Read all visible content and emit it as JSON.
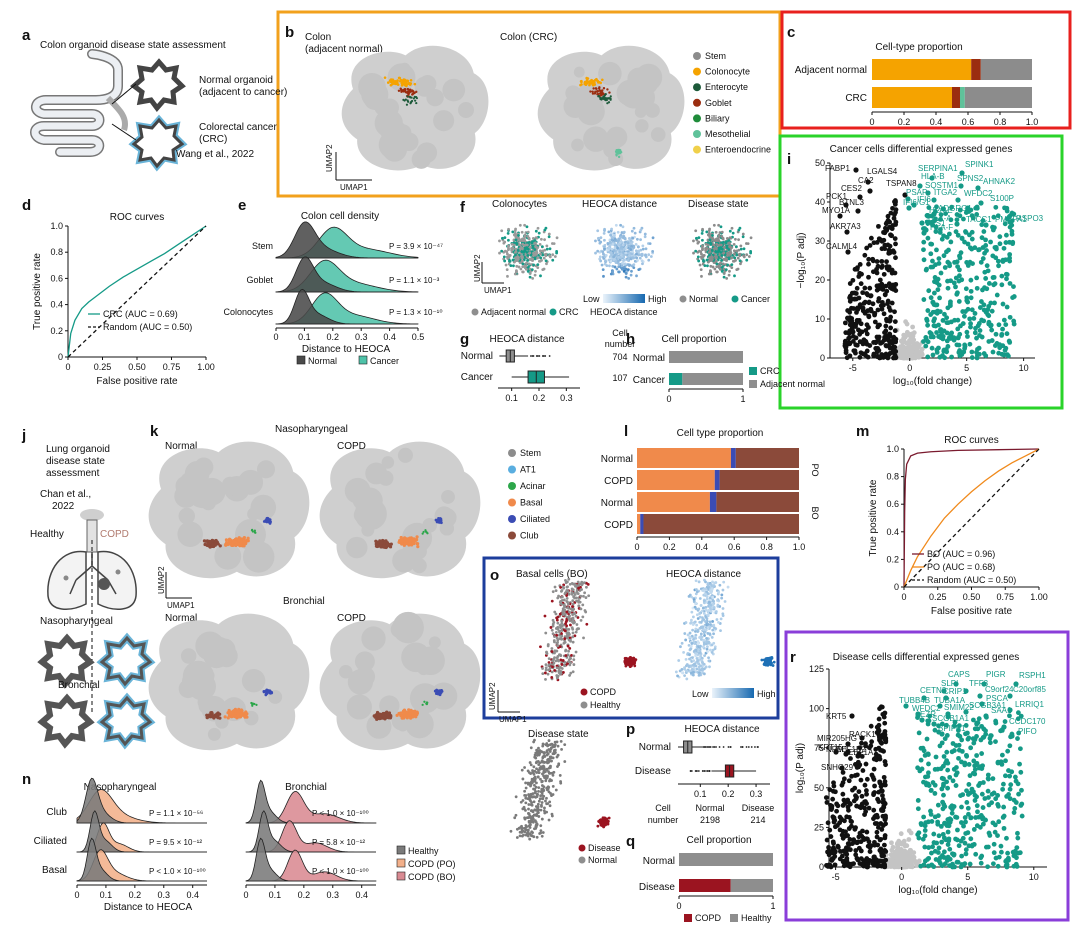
{
  "panels": {
    "a": {
      "label": "a",
      "title": "Colon organoid disease state assessment",
      "normal": "Normal organoid",
      "normal2": "(adjacent to cancer)",
      "crc": "Colorectal cancer",
      "crc2": "(CRC)",
      "ref": "Wang et al., 2022"
    },
    "b": {
      "label": "b",
      "left_title": "Colon",
      "left_title2": "(adjacent normal)",
      "right_title": "Colon (CRC)",
      "xaxis": "UMAP1",
      "yaxis": "UMAP2"
    },
    "c": {
      "label": "c"
    },
    "d": {
      "label": "d"
    },
    "e": {
      "label": "e"
    },
    "f": {
      "label": "f",
      "titles": [
        "Colonocytes",
        "HEOCA distance",
        "Disease state"
      ],
      "xaxis": "UMAP1",
      "yaxis": "UMAP2",
      "legend1": [
        "Adjacent normal",
        "CRC"
      ],
      "legend2_low": "Low",
      "legend2_high": "High",
      "legend2_title": "HEOCA distance",
      "legend3": [
        "Normal",
        "Cancer"
      ]
    },
    "g": {
      "label": "g"
    },
    "h": {
      "label": "h"
    },
    "i": {
      "label": "i"
    },
    "j": {
      "label": "j",
      "title1": "Lung organoid",
      "title2": "disease state",
      "title3": "assessment",
      "ref1": "Chan et al.,",
      "ref2": "2022",
      "healthy": "Healthy",
      "copd": "COPD",
      "naso": "Nasopharyngeal",
      "bron": "Bronchial"
    },
    "k": {
      "label": "k",
      "top_title": "Nasopharyngeal",
      "bottom_title": "Bronchial",
      "normal": "Normal",
      "copd": "COPD",
      "xaxis": "UMAP1",
      "yaxis": "UMAP2"
    },
    "l": {
      "label": "l"
    },
    "m": {
      "label": "m"
    },
    "n": {
      "label": "n"
    },
    "o": {
      "label": "o",
      "title1": "Basal cells (BO)",
      "title2": "HEOCA distance",
      "legend": [
        "COPD",
        "Healthy"
      ],
      "low": "Low",
      "high": "High",
      "xaxis": "UMAP1",
      "yaxis": "UMAP2",
      "disease_state": "Disease state",
      "ds_legend": [
        "Disease",
        "Normal"
      ]
    },
    "p": {
      "label": "p"
    },
    "q": {
      "label": "q"
    },
    "r": {
      "label": "r"
    }
  },
  "colors": {
    "stem": "#8c8c8c",
    "colonocyte": "#f5a300",
    "enterocyte": "#1d5a3a",
    "goblet": "#9b2d10",
    "biliary": "#1f8c3a",
    "mesothelial": "#5fc29a",
    "enteroendocrine": "#f0d04a",
    "teal": "#159a87",
    "normal_gray": "#7a7a7a",
    "lung_at1": "#5aaee0",
    "lung_acinar": "#2ca64a",
    "lung_basal": "#f08a4b",
    "lung_ciliated": "#3b4cb4",
    "lung_club": "#8b4a3a",
    "copd": "#9b1420",
    "healthy": "#8e8e8e",
    "frame_b": "#f2a11c",
    "frame_c": "#e8201e",
    "frame_i": "#2ad32a",
    "frame_o": "#1d3e9c",
    "frame_r": "#8a3ed9"
  },
  "chart_data": [
    {
      "id": "c",
      "type": "bar",
      "orientation": "horizontal",
      "stacked": true,
      "title": "Cell-type proportion",
      "categories": [
        "Adjacent normal",
        "CRC"
      ],
      "series": [
        {
          "color": "#f5a300",
          "values": [
            0.62,
            0.5
          ]
        },
        {
          "color": "#9b2d10",
          "values": [
            0.06,
            0.05
          ]
        },
        {
          "color": "#5fc29a",
          "values": [
            0.0,
            0.03
          ]
        },
        {
          "color": "#8c8c8c",
          "values": [
            0.32,
            0.42
          ]
        }
      ],
      "xticks": [
        "0",
        "0.2",
        "0.4",
        "0.6",
        "0.8",
        "1.0"
      ],
      "xlim": [
        0,
        1
      ]
    },
    {
      "id": "d",
      "type": "line",
      "title": "ROC curves",
      "xlabel": "False positive rate",
      "ylabel": "True positive rate",
      "xticks": [
        "0",
        "0.25",
        "0.50",
        "0.75",
        "1.00"
      ],
      "yticks": [
        "0",
        "0.2",
        "0.4",
        "0.6",
        "0.8",
        "1.0"
      ],
      "xlim": [
        0,
        1
      ],
      "ylim": [
        0,
        1
      ],
      "series": [
        {
          "name": "CRC (AUC = 0.69)",
          "color": "#159a87",
          "x": [
            0,
            0.02,
            0.05,
            0.1,
            0.15,
            0.2,
            0.3,
            0.4,
            0.5,
            0.6,
            0.7,
            0.8,
            0.9,
            1.0
          ],
          "y": [
            0,
            0.18,
            0.28,
            0.37,
            0.42,
            0.46,
            0.54,
            0.61,
            0.67,
            0.73,
            0.79,
            0.86,
            0.93,
            1.0
          ]
        },
        {
          "name": "Random (AUC = 0.50)",
          "color": "#111111",
          "dashed": true,
          "x": [
            0,
            1
          ],
          "y": [
            0,
            1
          ]
        }
      ],
      "legend": "bottom-right"
    },
    {
      "id": "e",
      "type": "area",
      "title": "Colon cell density",
      "xlabel": "Distance to HEOCA",
      "xticks": [
        "0",
        "0.1",
        "0.2",
        "0.3",
        "0.4",
        "0.5"
      ],
      "xlim": [
        0,
        0.5
      ],
      "categories": [
        "Stem",
        "Goblet",
        "Colonocytes"
      ],
      "pvalues": [
        "P = 3.9 × 10⁻⁴⁷",
        "P = 1.1 × 10⁻³",
        "P = 1.3 × 10⁻¹⁰"
      ],
      "legend": [
        {
          "name": "Normal",
          "color": "#4a4a4a"
        },
        {
          "name": "Cancer",
          "color": "#4ec2a8"
        }
      ]
    },
    {
      "id": "g",
      "type": "table",
      "title": "HEOCA distance",
      "categories": [
        "Normal",
        "Cancer"
      ],
      "cell_number_title": "Cell",
      "cell_number_title2": "number",
      "cell_numbers": [
        "704",
        "107"
      ],
      "xticks": [
        "0.1",
        "0.2",
        "0.3"
      ]
    },
    {
      "id": "h",
      "type": "bar",
      "orientation": "horizontal",
      "stacked": true,
      "title": "Cell proportion",
      "categories": [
        "Normal",
        "Cancer"
      ],
      "series": [
        {
          "name": "CRC",
          "color": "#159a87",
          "values": [
            0.0,
            0.18
          ]
        },
        {
          "name": "Adjacent normal",
          "color": "#8e8e8e",
          "values": [
            1.0,
            0.82
          ]
        }
      ],
      "xticks": [
        "0",
        "1"
      ]
    },
    {
      "id": "i",
      "type": "scatter",
      "title": "Cancer cells differential expressed genes",
      "xlabel": "log₁₀(fold change)",
      "ylabel": "−log₁₀(P adj)",
      "xticks": [
        "-5",
        "0",
        "5",
        "10"
      ],
      "yticks": [
        "0",
        "10",
        "20",
        "30",
        "40",
        "50"
      ],
      "left_genes": [
        "FABP1",
        "LGALS4",
        "CA2",
        "TSPAN8",
        "CES2",
        "PCK1",
        "BTNL3",
        "MYO1A",
        "AKR7A3",
        "CALML4"
      ],
      "right_genes": [
        "SERPINA1",
        "SPINK1",
        "HLA-B",
        "SPNS2",
        "AHNAK2",
        "PSAP",
        "SQSTM1",
        "WFDC2",
        "S100P",
        "IFI6",
        "ITGA2",
        "ADGRG1",
        "HLA-E",
        "TACC1",
        "PMEPA1",
        "RSPO3",
        "HLA-A",
        "HLA-F",
        "VPS1",
        "IFI6/G1"
      ]
    },
    {
      "id": "l",
      "type": "bar",
      "orientation": "horizontal",
      "stacked": true,
      "title": "Cell type proportion",
      "categories": [
        "Normal",
        "COPD",
        "Normal",
        "COPD"
      ],
      "groups": [
        "PO",
        "BO"
      ],
      "series": [
        {
          "color": "#f08a4b",
          "values": [
            0.58,
            0.48,
            0.45,
            0.02
          ]
        },
        {
          "color": "#3b4cb4",
          "values": [
            0.03,
            0.03,
            0.04,
            0.02
          ]
        },
        {
          "color": "#8b4a3a",
          "values": [
            0.39,
            0.49,
            0.51,
            0.96
          ]
        }
      ],
      "xticks": [
        "0",
        "0.2",
        "0.4",
        "0.6",
        "0.8",
        "1.0"
      ]
    },
    {
      "id": "m",
      "type": "line",
      "title": "ROC curves",
      "xlabel": "False positive rate",
      "ylabel": "True positive rate",
      "xticks": [
        "0",
        "0.25",
        "0.50",
        "0.75",
        "1.00"
      ],
      "yticks": [
        "0",
        "0.2",
        "0.4",
        "0.6",
        "0.8",
        "1.0"
      ],
      "series": [
        {
          "name": "BO (AUC = 0.96)",
          "color": "#7a1a2e",
          "x": [
            0,
            0.005,
            0.01,
            0.02,
            0.05,
            0.1,
            0.2,
            0.4,
            0.7,
            1.0
          ],
          "y": [
            0,
            0.55,
            0.78,
            0.89,
            0.95,
            0.97,
            0.98,
            0.99,
            0.995,
            1.0
          ]
        },
        {
          "name": "PO (AUC = 0.68)",
          "color": "#f08a1c",
          "x": [
            0,
            0.05,
            0.1,
            0.2,
            0.3,
            0.4,
            0.5,
            0.6,
            0.7,
            0.8,
            0.9,
            1.0
          ],
          "y": [
            0,
            0.12,
            0.22,
            0.37,
            0.5,
            0.6,
            0.69,
            0.77,
            0.84,
            0.9,
            0.95,
            1.0
          ]
        },
        {
          "name": "Random (AUC = 0.50)",
          "color": "#111111",
          "dashed": true,
          "x": [
            0,
            1
          ],
          "y": [
            0,
            1
          ]
        }
      ]
    },
    {
      "id": "n",
      "type": "area",
      "titles": [
        "Nasopharyngeal",
        "Bronchial"
      ],
      "categories": [
        "Club",
        "Ciliated",
        "Basal"
      ],
      "pvalues_left": [
        "P = 1.1 × 10⁻⁵⁶",
        "P = 9.5 × 10⁻¹²",
        "P < 1.0 × 10⁻¹⁰⁰"
      ],
      "pvalues_right": [
        "P < 1.0 × 10⁻¹⁰⁰",
        "P = 5.8 × 10⁻¹²",
        "P < 1.0 × 10⁻¹⁰⁰"
      ],
      "xlabel": "Distance to HEOCA",
      "xticks": [
        "0",
        "0.1",
        "0.2",
        "0.3",
        "0.4"
      ],
      "legend": [
        {
          "name": "Healthy",
          "color": "#7a7a7a"
        },
        {
          "name": "COPD (PO)",
          "color": "#f3b08a"
        },
        {
          "name": "COPD (BO)",
          "color": "#d98a92"
        }
      ]
    },
    {
      "id": "p",
      "type": "table",
      "title": "HEOCA distance",
      "categories": [
        "Normal",
        "Disease"
      ],
      "cell_number_title": "Cell",
      "cell_number_title2": "number",
      "col_normal": "Normal",
      "col_disease": "Disease",
      "cell_numbers": [
        "2198",
        "214"
      ],
      "xticks": [
        "0.1",
        "0.2",
        "0.3"
      ]
    },
    {
      "id": "q",
      "type": "bar",
      "orientation": "horizontal",
      "stacked": true,
      "title": "Cell proportion",
      "categories": [
        "Normal",
        "Disease"
      ],
      "series": [
        {
          "name": "COPD",
          "color": "#9b1420",
          "values": [
            0.0,
            0.55
          ]
        },
        {
          "name": "Healthy",
          "color": "#8e8e8e",
          "values": [
            1.0,
            0.45
          ]
        }
      ],
      "xticks": [
        "0",
        "1"
      ]
    },
    {
      "id": "r",
      "type": "scatter",
      "title": "Disease cells differential expressed genes",
      "xlabel": "log₁₀(fold change)",
      "ylabel": "log₁₀(P adj)",
      "xticks": [
        "-5",
        "0",
        "5",
        "10"
      ],
      "yticks": [
        "0",
        "25",
        "50",
        "75",
        "100",
        "125"
      ],
      "left_genes": [
        "KRT5",
        "RACK1",
        "MIR205HG",
        "NPM1",
        "EEF1B2",
        "KRT15",
        "EEF1A1",
        "SNHG29"
      ],
      "right_genes": [
        "CAPS",
        "PIGR",
        "RSPH1",
        "SLPI",
        "TFF3",
        "CETN2",
        "CRIP1",
        "C9orf24",
        "C20orf85",
        "TUBB4B",
        "TUBA1A",
        "PSCA",
        "LRRIQ1",
        "WFDC2",
        "SMIM22",
        "SCGB3A1",
        "SAA1",
        "EZR",
        "SCGB1A1",
        "CCDC170",
        "BPIFB1",
        "PIFO"
      ]
    }
  ],
  "umap_legend_b": [
    "Stem",
    "Colonocyte",
    "Enterocyte",
    "Goblet",
    "Biliary",
    "Mesothelial",
    "Enteroendocrine"
  ],
  "umap_legend_k": [
    "Stem",
    "AT1",
    "Acinar",
    "Basal",
    "Ciliated",
    "Club"
  ]
}
